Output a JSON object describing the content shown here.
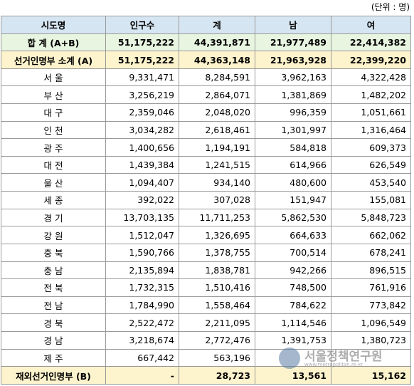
{
  "unit_label": "(단위 : 명)",
  "headers": [
    "시도명",
    "인구수",
    "계",
    "남",
    "여"
  ],
  "total": {
    "name": "합 계 (A+B)",
    "population": "51,175,222",
    "voters": "44,391,871",
    "male": "21,977,489",
    "female": "22,414,382"
  },
  "subtotal": {
    "name": "선거인명부 소계 (A)",
    "population": "51,175,222",
    "voters": "44,363,148",
    "male": "21,963,928",
    "female": "22,399,220"
  },
  "rows": [
    {
      "name": "서 울",
      "population": "9,331,471",
      "voters": "8,284,591",
      "male": "3,962,163",
      "female": "4,322,428"
    },
    {
      "name": "부 산",
      "population": "3,256,219",
      "voters": "2,864,071",
      "male": "1,381,869",
      "female": "1,482,202"
    },
    {
      "name": "대 구",
      "population": "2,359,046",
      "voters": "2,048,020",
      "male": "996,359",
      "female": "1,051,661"
    },
    {
      "name": "인 천",
      "population": "3,034,282",
      "voters": "2,618,461",
      "male": "1,301,997",
      "female": "1,316,464"
    },
    {
      "name": "광 주",
      "population": "1,400,656",
      "voters": "1,194,191",
      "male": "584,818",
      "female": "609,373"
    },
    {
      "name": "대 전",
      "population": "1,439,384",
      "voters": "1,241,515",
      "male": "614,966",
      "female": "626,549"
    },
    {
      "name": "울 산",
      "population": "1,094,407",
      "voters": "934,140",
      "male": "480,600",
      "female": "453,540"
    },
    {
      "name": "세 종",
      "population": "392,022",
      "voters": "307,028",
      "male": "151,947",
      "female": "155,081"
    },
    {
      "name": "경 기",
      "population": "13,703,135",
      "voters": "11,711,253",
      "male": "5,862,530",
      "female": "5,848,723"
    },
    {
      "name": "강 원",
      "population": "1,512,047",
      "voters": "1,326,695",
      "male": "664,633",
      "female": "662,062"
    },
    {
      "name": "충 북",
      "population": "1,590,766",
      "voters": "1,378,755",
      "male": "700,514",
      "female": "678,241"
    },
    {
      "name": "충 남",
      "population": "2,135,894",
      "voters": "1,838,781",
      "male": "942,266",
      "female": "896,515"
    },
    {
      "name": "전 북",
      "population": "1,732,315",
      "voters": "1,510,416",
      "male": "748,500",
      "female": "761,916"
    },
    {
      "name": "전 남",
      "population": "1,784,990",
      "voters": "1,558,464",
      "male": "784,622",
      "female": "773,842"
    },
    {
      "name": "경 북",
      "population": "2,522,472",
      "voters": "2,211,095",
      "male": "1,114,546",
      "female": "1,096,549"
    },
    {
      "name": "경 남",
      "population": "3,218,674",
      "voters": "2,772,476",
      "male": "1,391,753",
      "female": "1,380,723"
    },
    {
      "name": "제 주",
      "population": "667,442",
      "voters": "563,196",
      "male": "",
      "female": ""
    }
  ],
  "overseas": {
    "name": "재외선거인명부 (B)",
    "population": "-",
    "voters": "28,723",
    "male": "13,561",
    "female": "15,162"
  },
  "watermark": {
    "text": "서울정책연구원",
    "sub": "www.metropolitan.re.kr"
  },
  "colors": {
    "header_bg": "#d6e5f2",
    "total_bg": "#e8f5e0",
    "subtotal_bg": "#fdf3cc",
    "border": "#9a9a9a"
  }
}
